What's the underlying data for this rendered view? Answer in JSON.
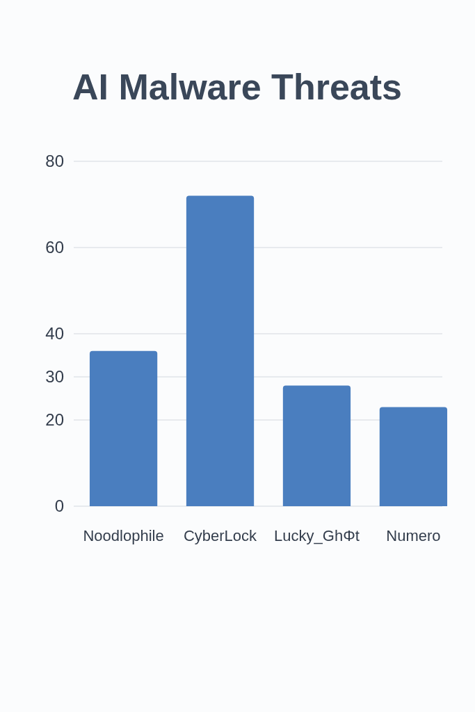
{
  "chart_data": {
    "type": "bar",
    "title": "AI Malware Threats",
    "categories": [
      "Noodlophile",
      "CyberLock",
      "Lucky_GhΦt",
      "Numero"
    ],
    "values": [
      36,
      72,
      28,
      23
    ],
    "color": "#4a7ebf",
    "ylim": [
      0,
      80
    ],
    "yticks": [
      0,
      20,
      30,
      40,
      60,
      80
    ],
    "grid": "y"
  }
}
